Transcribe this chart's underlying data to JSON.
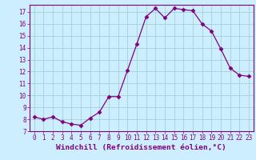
{
  "x": [
    0,
    1,
    2,
    3,
    4,
    5,
    6,
    7,
    8,
    9,
    10,
    11,
    12,
    13,
    14,
    15,
    16,
    17,
    18,
    19,
    20,
    21,
    22,
    23
  ],
  "y": [
    8.2,
    8.0,
    8.2,
    7.8,
    7.6,
    7.5,
    8.1,
    8.6,
    9.9,
    9.9,
    12.1,
    14.3,
    16.6,
    17.3,
    16.5,
    17.3,
    17.2,
    17.1,
    16.0,
    15.4,
    13.9,
    12.3,
    11.7,
    11.6
  ],
  "line_color": "#800080",
  "marker": "D",
  "marker_size": 2.5,
  "bg_color": "#cceeff",
  "grid_color": "#99cccc",
  "xlabel": "Windchill (Refroidissement éolien,°C)",
  "xlim": [
    -0.5,
    23.5
  ],
  "ylim": [
    7,
    17.6
  ],
  "yticks": [
    7,
    8,
    9,
    10,
    11,
    12,
    13,
    14,
    15,
    16,
    17
  ],
  "xticks": [
    0,
    1,
    2,
    3,
    4,
    5,
    6,
    7,
    8,
    9,
    10,
    11,
    12,
    13,
    14,
    15,
    16,
    17,
    18,
    19,
    20,
    21,
    22,
    23
  ],
  "tick_fontsize": 5.5,
  "xlabel_fontsize": 6.8
}
